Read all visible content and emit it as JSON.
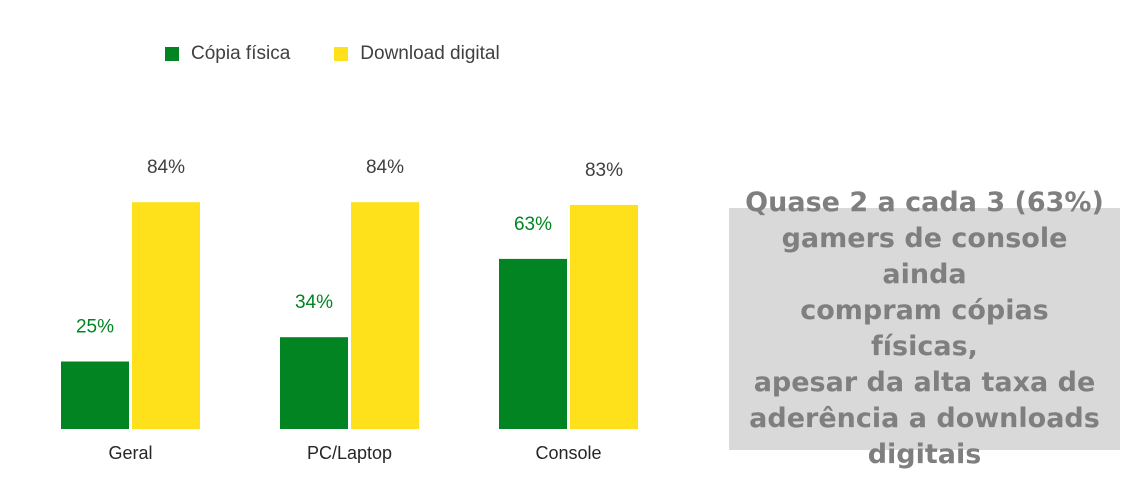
{
  "chart_data": {
    "type": "bar",
    "categories": [
      "Geral",
      "PC/Laptop",
      "Console"
    ],
    "series": [
      {
        "name": "Cópia física",
        "values": [
          25,
          34,
          63
        ],
        "labels": [
          "25%",
          "34%",
          "63%"
        ],
        "color": "#038423"
      },
      {
        "name": "Download digital",
        "values": [
          84,
          84,
          83
        ],
        "labels": [
          "84%",
          "84%",
          "83%"
        ],
        "color": "#fee01b"
      }
    ],
    "ylim": [
      0,
      100
    ],
    "unit": "%",
    "legend": "top-left",
    "grid": false
  },
  "callout": {
    "text": "Quase 2 a cada 3 (63%)\ngamers de console ainda\ncompram cópias físicas,\napesar da alta taxa de\naderência a downloads\ndigitais",
    "background": "#d9d9d9",
    "color": "#7f7f7f"
  }
}
